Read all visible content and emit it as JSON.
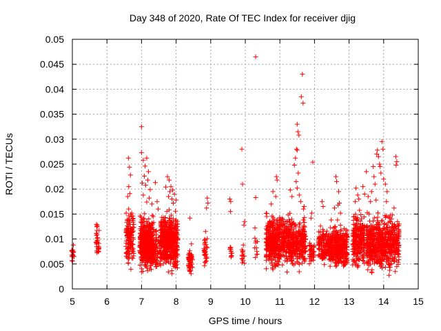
{
  "chart_data": {
    "type": "scatter",
    "title": "Day 348 of 2020, Rate Of TEC Index for receiver djig",
    "xlabel": "GPS time / hours",
    "ylabel": "ROTI / TECUs",
    "xlim": [
      5,
      15
    ],
    "ylim": [
      0,
      0.05
    ],
    "xticks": [
      5,
      6,
      7,
      8,
      9,
      10,
      11,
      12,
      13,
      14,
      15
    ],
    "yticks": [
      0,
      0.005,
      0.01,
      0.015,
      0.02,
      0.025,
      0.03,
      0.035,
      0.04,
      0.045,
      0.05
    ],
    "ytick_labels": [
      "0",
      "0.005",
      "0.01",
      "0.015",
      "0.02",
      "0.025",
      "0.03",
      "0.035",
      "0.04",
      "0.045",
      "0.05"
    ],
    "grid": true,
    "marker": "+",
    "color": "#ff0000",
    "clusters": [
      {
        "x": [
          4.98,
          5.04
        ],
        "y": [
          0.0045,
          0.0088
        ],
        "n": 14
      },
      {
        "x": [
          5.68,
          5.78
        ],
        "y": [
          0.0042,
          0.0142
        ],
        "n": 32
      },
      {
        "x": [
          6.55,
          6.78
        ],
        "y": [
          0.003,
          0.018
        ],
        "n": 130
      },
      {
        "x": [
          6.95,
          7.35
        ],
        "y": [
          0.002,
          0.016
        ],
        "n": 420
      },
      {
        "x": [
          7.35,
          7.55
        ],
        "y": [
          0.003,
          0.013
        ],
        "n": 70
      },
      {
        "x": [
          7.55,
          8.05
        ],
        "y": [
          0.002,
          0.017
        ],
        "n": 480
      },
      {
        "x": [
          8.35,
          8.48
        ],
        "y": [
          0.002,
          0.0095
        ],
        "n": 50
      },
      {
        "x": [
          8.8,
          8.9
        ],
        "y": [
          0.0025,
          0.012
        ],
        "n": 30
      },
      {
        "x": [
          9.55,
          9.62
        ],
        "y": [
          0.0045,
          0.0098
        ],
        "n": 12
      },
      {
        "x": [
          9.9,
          9.98
        ],
        "y": [
          0.0035,
          0.0095
        ],
        "n": 14
      },
      {
        "x": [
          10.25,
          10.35
        ],
        "y": [
          0.004,
          0.0125
        ],
        "n": 10
      },
      {
        "x": [
          10.6,
          10.98
        ],
        "y": [
          0.003,
          0.016
        ],
        "n": 320
      },
      {
        "x": [
          10.98,
          11.3
        ],
        "y": [
          0.003,
          0.0165
        ],
        "n": 180
      },
      {
        "x": [
          11.3,
          11.75
        ],
        "y": [
          0.003,
          0.015
        ],
        "n": 260
      },
      {
        "x": [
          11.85,
          12.0
        ],
        "y": [
          0.004,
          0.011
        ],
        "n": 40
      },
      {
        "x": [
          12.1,
          12.4
        ],
        "y": [
          0.004,
          0.014
        ],
        "n": 120
      },
      {
        "x": [
          12.4,
          12.95
        ],
        "y": [
          0.003,
          0.014
        ],
        "n": 380
      },
      {
        "x": [
          13.1,
          13.45
        ],
        "y": [
          0.003,
          0.017
        ],
        "n": 220
      },
      {
        "x": [
          13.5,
          13.95
        ],
        "y": [
          0.002,
          0.016
        ],
        "n": 330
      },
      {
        "x": [
          13.95,
          14.45
        ],
        "y": [
          0.002,
          0.016
        ],
        "n": 290
      }
    ],
    "points": [
      [
        5.0,
        0.0065
      ],
      [
        5.05,
        0.0065
      ],
      [
        5.03,
        0.0088
      ],
      [
        6.62,
        0.0262
      ],
      [
        6.65,
        0.0244
      ],
      [
        6.68,
        0.0228
      ],
      [
        6.63,
        0.0205
      ],
      [
        6.66,
        0.0191
      ],
      [
        6.6,
        0.0185
      ],
      [
        7.0,
        0.0325
      ],
      [
        7.0,
        0.0273
      ],
      [
        7.05,
        0.0258
      ],
      [
        7.1,
        0.0246
      ],
      [
        7.15,
        0.0262
      ],
      [
        7.2,
        0.0235
      ],
      [
        7.08,
        0.0226
      ],
      [
        7.18,
        0.0218
      ],
      [
        7.12,
        0.0208
      ],
      [
        7.02,
        0.0212
      ],
      [
        7.25,
        0.0199
      ],
      [
        7.05,
        0.0188
      ],
      [
        7.22,
        0.0182
      ],
      [
        7.15,
        0.0174
      ],
      [
        7.3,
        0.017
      ],
      [
        7.4,
        0.0213
      ],
      [
        7.45,
        0.0175
      ],
      [
        7.48,
        0.016
      ],
      [
        7.75,
        0.0225
      ],
      [
        7.8,
        0.0218
      ],
      [
        7.85,
        0.0205
      ],
      [
        7.7,
        0.0204
      ],
      [
        7.9,
        0.0198
      ],
      [
        7.82,
        0.0195
      ],
      [
        7.95,
        0.019
      ],
      [
        7.78,
        0.0185
      ],
      [
        7.88,
        0.018
      ],
      [
        8.0,
        0.0178
      ],
      [
        7.92,
        0.0172
      ],
      [
        8.4,
        0.0142
      ],
      [
        8.9,
        0.0182
      ],
      [
        8.92,
        0.0172
      ],
      [
        8.88,
        0.0162
      ],
      [
        8.85,
        0.0115
      ],
      [
        9.55,
        0.018
      ],
      [
        9.58,
        0.0175
      ],
      [
        9.57,
        0.0155
      ],
      [
        9.9,
        0.028
      ],
      [
        9.92,
        0.021
      ],
      [
        9.98,
        0.0135
      ],
      [
        9.96,
        0.0128
      ],
      [
        10.3,
        0.0465
      ],
      [
        10.28,
        0.0122
      ],
      [
        10.3,
        0.0183
      ],
      [
        10.9,
        0.0225
      ],
      [
        10.92,
        0.0218
      ],
      [
        10.8,
        0.0195
      ],
      [
        10.88,
        0.0185
      ],
      [
        10.75,
        0.017
      ],
      [
        11.5,
        0.033
      ],
      [
        11.52,
        0.0315
      ],
      [
        11.55,
        0.0308
      ],
      [
        11.48,
        0.028
      ],
      [
        11.5,
        0.0278
      ],
      [
        11.45,
        0.0262
      ],
      [
        11.42,
        0.0248
      ],
      [
        11.53,
        0.0232
      ],
      [
        11.47,
        0.0215
      ],
      [
        11.5,
        0.0202
      ],
      [
        11.56,
        0.0188
      ],
      [
        11.6,
        0.0175
      ],
      [
        11.65,
        0.043
      ],
      [
        11.62,
        0.0385
      ],
      [
        11.67,
        0.0372
      ],
      [
        11.7,
        0.0165
      ],
      [
        11.68,
        0.016
      ],
      [
        11.3,
        0.0198
      ],
      [
        11.35,
        0.0185
      ],
      [
        11.95,
        0.0254
      ],
      [
        11.9,
        0.0142
      ],
      [
        11.92,
        0.0152
      ],
      [
        12.22,
        0.0175
      ],
      [
        12.25,
        0.0165
      ],
      [
        12.62,
        0.0225
      ],
      [
        12.64,
        0.0215
      ],
      [
        12.7,
        0.0195
      ],
      [
        12.72,
        0.0172
      ],
      [
        12.68,
        0.0168
      ],
      [
        12.58,
        0.0162
      ],
      [
        12.75,
        0.0152
      ],
      [
        13.2,
        0.0202
      ],
      [
        13.25,
        0.0188
      ],
      [
        13.18,
        0.0175
      ],
      [
        13.28,
        0.018
      ],
      [
        13.4,
        0.0205
      ],
      [
        13.45,
        0.019
      ],
      [
        13.5,
        0.0235
      ],
      [
        13.55,
        0.0185
      ],
      [
        13.62,
        0.0175
      ],
      [
        13.65,
        0.0195
      ],
      [
        13.7,
        0.0245
      ],
      [
        13.72,
        0.0225
      ],
      [
        13.75,
        0.021
      ],
      [
        13.8,
        0.027
      ],
      [
        13.82,
        0.0278
      ],
      [
        13.85,
        0.0265
      ],
      [
        13.88,
        0.025
      ],
      [
        13.9,
        0.0245
      ],
      [
        13.92,
        0.0232
      ],
      [
        13.78,
        0.0178
      ],
      [
        13.95,
        0.0295
      ],
      [
        13.98,
        0.028
      ],
      [
        14.0,
        0.022
      ],
      [
        14.05,
        0.021
      ],
      [
        14.1,
        0.0195
      ],
      [
        14.08,
        0.0175
      ],
      [
        14.35,
        0.0265
      ],
      [
        14.38,
        0.0255
      ],
      [
        14.36,
        0.0248
      ],
      [
        14.3,
        0.0162
      ],
      [
        14.2,
        0.0148
      ],
      [
        14.25,
        0.0148
      ]
    ]
  }
}
